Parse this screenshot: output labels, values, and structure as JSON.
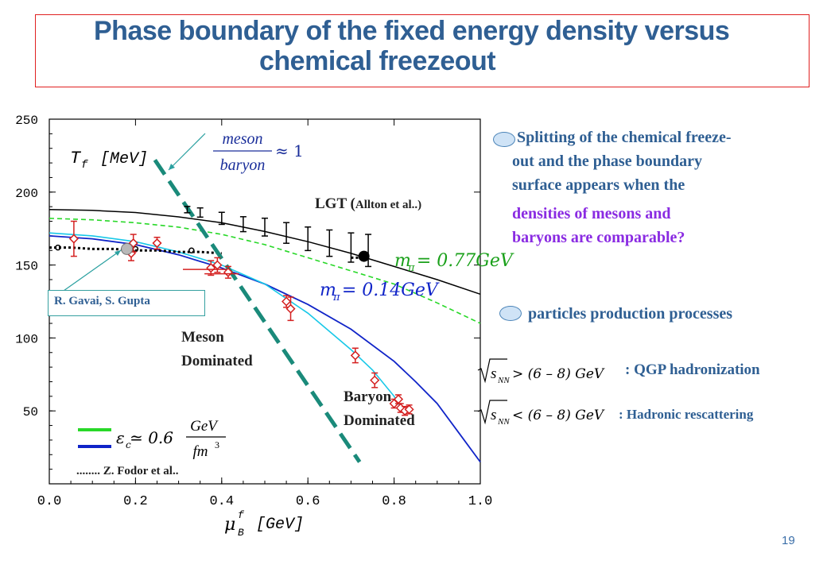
{
  "slide": {
    "title_line1": "Phase  boundary of the fixed energy density versus",
    "title_line2": "chemical freezeout",
    "page_number": "19"
  },
  "bullets": [
    {
      "lines": [
        "Splitting of the chemical freeze-",
        "out and the phase  boundary",
        "surface appears  when the"
      ],
      "highlight_lines": [
        "densities  of mesons  and",
        "baryons are comparable?"
      ]
    },
    {
      "lines": [
        "particles production processes"
      ]
    }
  ],
  "conditions": [
    {
      "formula_sqrt": "s",
      "formula_sub": "NN",
      "formula_rest": "> (6 – 8)  GeV",
      "label": ": QGP hadronization"
    },
    {
      "formula_sqrt": "s",
      "formula_sub": "NN",
      "formula_rest": "< (6 – 8)  GeV",
      "label": ": Hadronic  rescattering"
    }
  ],
  "plot_labels": {
    "yaxis_title": "T_f [MeV]",
    "xaxis_title": "μ_B^f [GeV]",
    "ratio_label": "meson / baryon ≈ 1",
    "ratio_num": "meson",
    "ratio_den": "baryon",
    "ratio_approx": "≈ 1",
    "lgt_label": "LGT (",
    "lgt_ref": "Allton et al..)",
    "mpi_green": "m  = 0.77GeV",
    "mpi_blue": "m  = 0.14GeV",
    "pi_sub": "π",
    "gavai": "R. Gavai, S. Gupta",
    "meson_dom_1": "Meson",
    "meson_dom_2": "Dominated",
    "baryon_dom_1": "Baryon",
    "baryon_dom_2": "Dominated",
    "epsilon_text": "ε  ≃ 0.6",
    "epsilon_sub": "c",
    "eps_num": "GeV",
    "eps_den": "fm",
    "eps_exp": "3",
    "fodor": "........  Z. Fodor et al.."
  },
  "chart_data": {
    "type": "scatter",
    "xlim": [
      0.0,
      1.0
    ],
    "ylim": [
      0,
      250
    ],
    "xticks": [
      "0.0",
      "0.2",
      "0.4",
      "0.6",
      "0.8",
      "1.0"
    ],
    "yticks": [
      "50",
      "100",
      "150",
      "200",
      "250"
    ],
    "ytick_values": [
      50,
      100,
      150,
      200,
      250
    ],
    "xtick_values": [
      0.0,
      0.2,
      0.4,
      0.6,
      0.8,
      1.0
    ],
    "colors": {
      "freezeout_points": "#d42020",
      "cyan_curve": "#18c8e8",
      "blue_curve": "#1024c8",
      "green_curve": "#28d828",
      "black_curve": "#000000",
      "dashed_boundary": "#1a8a7a"
    },
    "series": [
      {
        "points": [
          {
            "x": 0.057,
            "y": 168,
            "ye": 12
          },
          {
            "x": 0.19,
            "y": 158,
            "ye": 5
          },
          {
            "x": 0.195,
            "y": 165,
            "ye": 6
          },
          {
            "x": 0.25,
            "y": 165,
            "ye": 4
          },
          {
            "x": 0.39,
            "y": 150,
            "ye": 5
          },
          {
            "x": 0.415,
            "y": 145,
            "ye": 4
          },
          {
            "x": 0.375,
            "y": 148,
            "ye": 5
          },
          {
            "x": 0.55,
            "y": 125,
            "ye": 4
          },
          {
            "x": 0.56,
            "y": 120,
            "ye": 8
          },
          {
            "x": 0.71,
            "y": 88,
            "ye": 5
          },
          {
            "x": 0.755,
            "y": 71,
            "ye": 5
          },
          {
            "x": 0.8,
            "y": 55,
            "ye": 3
          },
          {
            "x": 0.815,
            "y": 52,
            "ye": 3
          },
          {
            "x": 0.825,
            "y": 50,
            "ye": 3
          },
          {
            "x": 0.81,
            "y": 58,
            "ye": 3
          },
          {
            "x": 0.835,
            "y": 51,
            "ye": 3
          }
        ]
      },
      {
        "points": [
          {
            "x": 0.0,
            "y": 182
          },
          {
            "x": 0.1,
            "y": 181
          },
          {
            "x": 0.2,
            "y": 179
          },
          {
            "x": 0.3,
            "y": 176
          },
          {
            "x": 0.4,
            "y": 171
          },
          {
            "x": 0.5,
            "y": 164
          },
          {
            "x": 0.6,
            "y": 155
          },
          {
            "x": 0.7,
            "y": 146
          },
          {
            "x": 0.8,
            "y": 137
          },
          {
            "x": 0.9,
            "y": 124
          },
          {
            "x": 1.0,
            "y": 110
          }
        ]
      },
      {
        "points": [
          {
            "x": 0.0,
            "y": 188
          },
          {
            "x": 0.1,
            "y": 187.5
          },
          {
            "x": 0.2,
            "y": 186
          },
          {
            "x": 0.3,
            "y": 183
          },
          {
            "x": 0.4,
            "y": 179
          },
          {
            "x": 0.5,
            "y": 173
          },
          {
            "x": 0.6,
            "y": 166
          },
          {
            "x": 0.7,
            "y": 158
          },
          {
            "x": 0.8,
            "y": 149
          },
          {
            "x": 0.9,
            "y": 140
          },
          {
            "x": 1.0,
            "y": 130
          }
        ]
      },
      {
        "points": [
          {
            "x": 0.0,
            "y": 170
          },
          {
            "x": 0.1,
            "y": 168
          },
          {
            "x": 0.2,
            "y": 164
          },
          {
            "x": 0.3,
            "y": 157
          },
          {
            "x": 0.4,
            "y": 148
          },
          {
            "x": 0.5,
            "y": 137
          },
          {
            "x": 0.6,
            "y": 123
          },
          {
            "x": 0.7,
            "y": 106
          },
          {
            "x": 0.8,
            "y": 84
          },
          {
            "x": 0.85,
            "y": 70
          },
          {
            "x": 0.9,
            "y": 55
          },
          {
            "x": 0.95,
            "y": 35
          },
          {
            "x": 1.0,
            "y": 15
          }
        ]
      },
      {
        "points": [
          {
            "x": 0.0,
            "y": 172
          },
          {
            "x": 0.1,
            "y": 170
          },
          {
            "x": 0.2,
            "y": 166
          },
          {
            "x": 0.3,
            "y": 159
          },
          {
            "x": 0.4,
            "y": 150
          },
          {
            "x": 0.5,
            "y": 137
          },
          {
            "x": 0.6,
            "y": 117
          },
          {
            "x": 0.7,
            "y": 92
          },
          {
            "x": 0.75,
            "y": 78
          },
          {
            "x": 0.8,
            "y": 60
          },
          {
            "x": 0.82,
            "y": 50
          }
        ]
      },
      {
        "points": [
          {
            "x": 0.0,
            "y": 162
          },
          {
            "x": 0.05,
            "y": 162
          },
          {
            "x": 0.1,
            "y": 161
          },
          {
            "x": 0.15,
            "y": 161
          },
          {
            "x": 0.2,
            "y": 160
          },
          {
            "x": 0.25,
            "y": 160
          },
          {
            "x": 0.3,
            "y": 159
          },
          {
            "x": 0.35,
            "y": 159
          },
          {
            "x": 0.4,
            "y": 158
          }
        ]
      },
      {
        "points": [
          {
            "x": 0.7,
            "y": 155
          },
          {
            "x": 0.73,
            "y": 155
          }
        ]
      },
      {
        "points": [
          {
            "x": 0.32,
            "y": 188
          },
          {
            "x": 0.35,
            "y": 186
          },
          {
            "x": 0.4,
            "y": 182
          },
          {
            "x": 0.45,
            "y": 178
          },
          {
            "x": 0.5,
            "y": 176
          },
          {
            "x": 0.55,
            "y": 172
          },
          {
            "x": 0.6,
            "y": 168
          },
          {
            "x": 0.65,
            "y": 165
          },
          {
            "x": 0.7,
            "y": 162
          },
          {
            "x": 0.74,
            "y": 160
          }
        ]
      },
      {
        "points": [
          {
            "x": 0.245,
            "y": 222
          },
          {
            "x": 0.72,
            "y": 15
          }
        ]
      }
    ]
  }
}
